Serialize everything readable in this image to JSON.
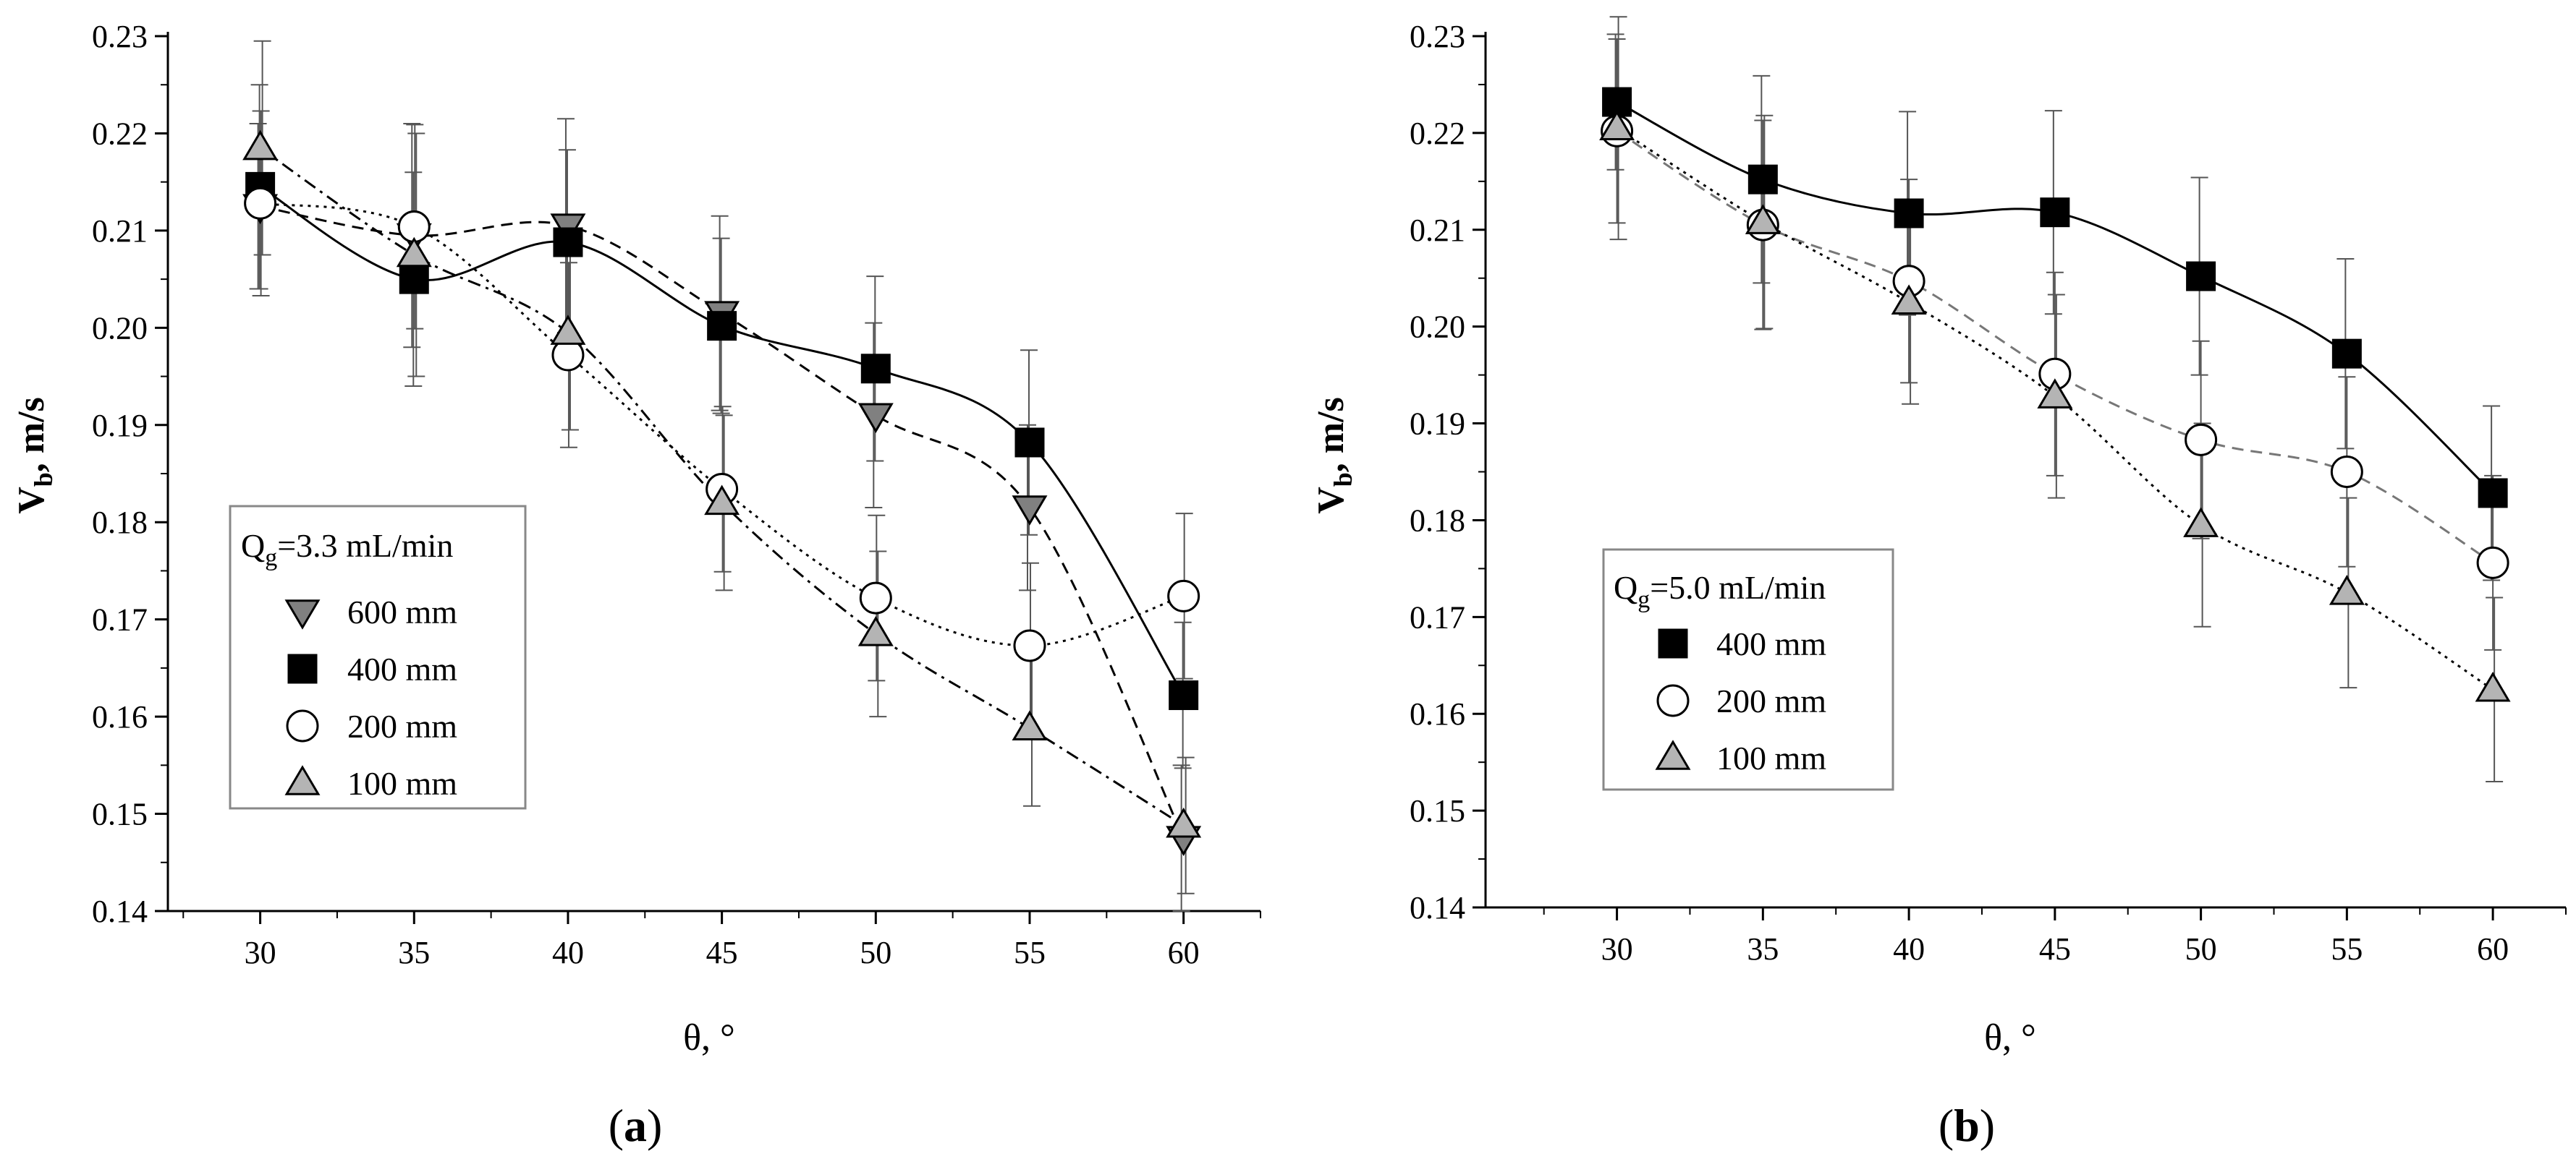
{
  "chart_data": [
    {
      "type": "scatter",
      "panel_label": "a",
      "xlabel": "θ, °",
      "ylabel": "V_b, m/s",
      "ylabel_main": "V",
      "ylabel_sub": "b",
      "ylabel_rest": ", m/s",
      "xlim": [
        27,
        62.5
      ],
      "ylim": [
        0.14,
        0.23
      ],
      "x_ticks": [
        30,
        35,
        40,
        45,
        50,
        55,
        60
      ],
      "y_ticks": [
        0.14,
        0.15,
        0.16,
        0.17,
        0.18,
        0.19,
        0.2,
        0.21,
        0.22,
        0.23
      ],
      "y_tick_labels": [
        "0.14",
        "0.15",
        "0.16",
        "0.17",
        "0.18",
        "0.19",
        "0.20",
        "0.21",
        "0.22",
        "0.23"
      ],
      "legend": {
        "title_main": "Q",
        "title_sub": "g",
        "title_rest": "=3.3 mL/min",
        "title": "Qg=3.3 mL/min"
      },
      "series": [
        {
          "name": "600 mm",
          "marker": "triangle-down",
          "fill": "#808080",
          "line": "dash",
          "x": [
            30,
            35,
            40,
            45,
            50,
            55,
            60
          ],
          "y": [
            0.2125,
            0.2095,
            0.2105,
            0.2015,
            0.191,
            0.1815,
            0.1475
          ],
          "err": [
            0.0085,
            0.0115,
            0.011,
            0.01,
            0.0095,
            0.0085,
            0.0075
          ]
        },
        {
          "name": "400 mm",
          "marker": "square",
          "fill": "#000000",
          "line": "solid",
          "x": [
            30,
            35,
            40,
            45,
            50,
            55,
            60
          ],
          "y": [
            0.2145,
            0.205,
            0.2088,
            0.2002,
            0.1958,
            0.1882,
            0.1622
          ],
          "err": [
            0.0105,
            0.011,
            0.0095,
            0.009,
            0.0095,
            0.0095,
            0.0075
          ]
        },
        {
          "name": "200 mm",
          "marker": "circle",
          "fill": "#ffffff",
          "line": "dot",
          "x": [
            30,
            35,
            40,
            45,
            50,
            55,
            60
          ],
          "y": [
            0.2128,
            0.2104,
            0.1972,
            0.1834,
            0.1722,
            0.1673,
            0.1724
          ],
          "err": [
            0.0095,
            0.0105,
            0.0095,
            0.0085,
            0.0085,
            0.0085,
            0.0085
          ]
        },
        {
          "name": "100 mm",
          "marker": "triangle-up",
          "fill": "#b4b4b4",
          "line": "dashdot",
          "x": [
            30,
            35,
            40,
            45,
            50,
            55,
            60
          ],
          "y": [
            0.2185,
            0.2075,
            0.1995,
            0.182,
            0.1685,
            0.1588,
            0.1488
          ],
          "err": [
            0.011,
            0.0125,
            0.01,
            0.009,
            0.0085,
            0.008,
            0.007
          ]
        }
      ]
    },
    {
      "type": "scatter",
      "panel_label": "b",
      "xlabel": "θ, °",
      "ylabel": "V_b, m/s",
      "ylabel_main": "V",
      "ylabel_sub": "b",
      "ylabel_rest": ", m/s",
      "xlim": [
        25.5,
        62.5
      ],
      "ylim": [
        0.14,
        0.23
      ],
      "x_ticks": [
        30,
        35,
        40,
        45,
        50,
        55,
        60
      ],
      "y_ticks": [
        0.14,
        0.15,
        0.16,
        0.17,
        0.18,
        0.19,
        0.2,
        0.21,
        0.22,
        0.23
      ],
      "y_tick_labels": [
        "0.14",
        "0.15",
        "0.16",
        "0.17",
        "0.18",
        "0.19",
        "0.20",
        "0.21",
        "0.22",
        "0.23"
      ],
      "legend": {
        "title_main": "Q",
        "title_sub": "g",
        "title_rest": "=5.0 mL/min",
        "title": "Qg=5.0 mL/min"
      },
      "series": [
        {
          "name": "400 mm",
          "marker": "square",
          "fill": "#000000",
          "line": "solid",
          "x": [
            30,
            35,
            40,
            45,
            50,
            55,
            60
          ],
          "y": [
            0.2232,
            0.2152,
            0.2117,
            0.2118,
            0.2052,
            0.1972,
            0.1828
          ],
          "err": [
            0.007,
            0.0107,
            0.0105,
            0.0105,
            0.0102,
            0.0098,
            0.009
          ]
        },
        {
          "name": "200 mm",
          "marker": "circle",
          "fill": "#ffffff",
          "line": "dash-gray",
          "x": [
            30,
            35,
            40,
            45,
            50,
            55,
            60
          ],
          "y": [
            0.2202,
            0.2105,
            0.2047,
            0.1951,
            0.1883,
            0.185,
            0.1756
          ],
          "err": [
            0.0095,
            0.0108,
            0.0105,
            0.0105,
            0.0102,
            0.0098,
            0.009
          ]
        },
        {
          "name": "100 mm",
          "marker": "triangle-up",
          "fill": "#b4b4b4",
          "line": "dot",
          "x": [
            30,
            35,
            40,
            45,
            50,
            55,
            60
          ],
          "y": [
            0.2205,
            0.2108,
            0.2025,
            0.1928,
            0.1795,
            0.1725,
            0.1625
          ],
          "err": [
            0.0115,
            0.011,
            0.0105,
            0.0105,
            0.0105,
            0.0098,
            0.0095
          ]
        }
      ]
    }
  ]
}
